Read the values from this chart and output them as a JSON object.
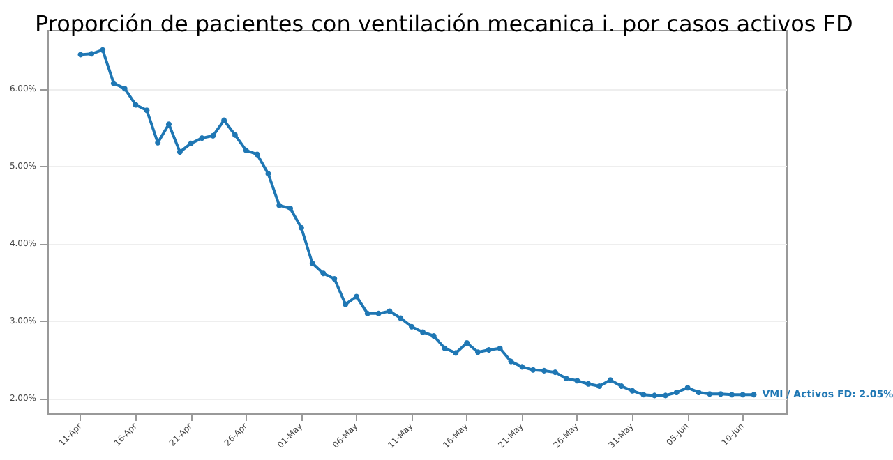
{
  "chart_data": {
    "type": "line",
    "title": "Proporción de pacientes con ventilación mecanica i. por casos activos FD",
    "x": [
      "--04-11",
      "--04-12",
      "--04-13",
      "--04-14",
      "--04-15",
      "--04-16",
      "--04-17",
      "--04-18",
      "--04-19",
      "--04-20",
      "--04-21",
      "--04-22",
      "--04-23",
      "--04-24",
      "--04-25",
      "--04-26",
      "--04-27",
      "--04-28",
      "--04-29",
      "--04-30",
      "--05-01",
      "--05-02",
      "--05-03",
      "--05-04",
      "--05-05",
      "--05-06",
      "--05-07",
      "--05-08",
      "--05-09",
      "--05-10",
      "--05-11",
      "--05-12",
      "--05-13",
      "--05-14",
      "--05-15",
      "--05-16",
      "--05-17",
      "--05-18",
      "--05-19",
      "--05-20",
      "--05-21",
      "--05-22",
      "--05-23",
      "--05-24",
      "--05-25",
      "--05-26",
      "--05-27",
      "--05-28",
      "--05-29",
      "--05-30",
      "--05-31",
      "--06-01",
      "--06-02",
      "--06-03",
      "--06-04",
      "--06-05",
      "--06-06",
      "--06-07",
      "--06-08",
      "--06-09",
      "--06-10",
      "--06-11"
    ],
    "series": [
      {
        "color": "#1f77b4",
        "values": [
          6.45,
          6.46,
          6.51,
          6.08,
          6.01,
          5.8,
          5.73,
          5.31,
          5.55,
          5.19,
          5.3,
          5.37,
          5.4,
          5.6,
          5.41,
          5.21,
          5.16,
          4.91,
          4.5,
          4.46,
          4.21,
          3.75,
          3.62,
          3.55,
          3.22,
          3.32,
          3.1,
          3.1,
          3.13,
          3.04,
          2.93,
          2.86,
          2.81,
          2.65,
          2.59,
          2.72,
          2.6,
          2.63,
          2.65,
          2.48,
          2.41,
          2.37,
          2.36,
          2.34,
          2.26,
          2.23,
          2.19,
          2.16,
          2.24,
          2.16,
          2.1,
          2.05,
          2.04,
          2.04,
          2.08,
          2.14,
          2.08,
          2.06,
          2.06,
          2.05,
          2.05,
          2.05
        ]
      }
    ],
    "xlim": [
      "--04-08",
      "--06-14"
    ],
    "xticks": [
      {
        "value": "--04-11",
        "label": "11-Apr"
      },
      {
        "value": "--04-16",
        "label": "16-Apr"
      },
      {
        "value": "--04-21",
        "label": "21-Apr"
      },
      {
        "value": "--04-26",
        "label": "26-Apr"
      },
      {
        "value": "--05-01",
        "label": "01-May"
      },
      {
        "value": "--05-06",
        "label": "06-May"
      },
      {
        "value": "--05-11",
        "label": "11-May"
      },
      {
        "value": "--05-16",
        "label": "16-May"
      },
      {
        "value": "--05-21",
        "label": "21-May"
      },
      {
        "value": "--05-26",
        "label": "26-May"
      },
      {
        "value": "--05-31",
        "label": "31-May"
      },
      {
        "value": "--06-05",
        "label": "05-Jun"
      },
      {
        "value": "--06-10",
        "label": "10-Jun"
      }
    ],
    "ylim": [
      1.8,
      6.76
    ],
    "yticks": [
      {
        "value": 2,
        "label": "2.00%"
      },
      {
        "value": 3,
        "label": "3.00%"
      },
      {
        "value": 4,
        "label": "4.00%"
      },
      {
        "value": 5,
        "label": "5.00%"
      },
      {
        "value": 6,
        "label": "6.00%"
      }
    ],
    "annotations": [
      {
        "text": "VMI / Activos FD: 2.05%",
        "x": "--06-11",
        "y": 2.05
      }
    ],
    "grid": "y",
    "marker": "circle",
    "line_style": "solid"
  }
}
